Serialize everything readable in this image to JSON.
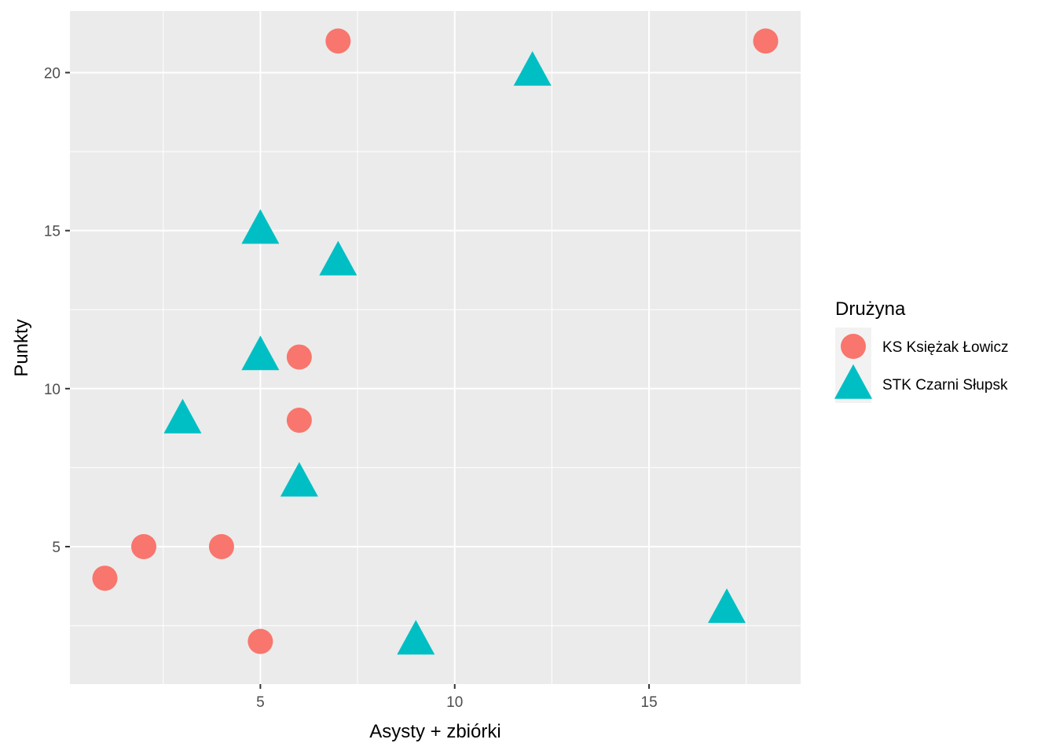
{
  "chart_data": {
    "type": "scatter",
    "xlabel": "Asysty + zbiórki",
    "ylabel": "Punkty",
    "xlim": [
      0.1,
      18.9
    ],
    "ylim": [
      0.65,
      21.95
    ],
    "x_ticks": [
      5,
      10,
      15
    ],
    "y_ticks": [
      5,
      10,
      15,
      20
    ],
    "x_tick_labels": [
      "5",
      "10",
      "15"
    ],
    "y_tick_labels": [
      "5",
      "10",
      "15",
      "20"
    ],
    "grid": true,
    "legend_title": "Drużyna",
    "legend_position": "right",
    "series": [
      {
        "name": "KS Księżak Łowicz",
        "shape": "circle",
        "color": "#F8766D",
        "points": [
          {
            "x": 7,
            "y": 21
          },
          {
            "x": 18,
            "y": 21
          },
          {
            "x": 6,
            "y": 11
          },
          {
            "x": 6,
            "y": 9
          },
          {
            "x": 2,
            "y": 5
          },
          {
            "x": 4,
            "y": 5
          },
          {
            "x": 1,
            "y": 4
          },
          {
            "x": 5,
            "y": 2
          }
        ]
      },
      {
        "name": "STK Czarni Słupsk",
        "shape": "triangle",
        "color": "#00BFC4",
        "points": [
          {
            "x": 12,
            "y": 20
          },
          {
            "x": 5,
            "y": 15
          },
          {
            "x": 7,
            "y": 14
          },
          {
            "x": 5,
            "y": 11
          },
          {
            "x": 3,
            "y": 9
          },
          {
            "x": 6,
            "y": 7
          },
          {
            "x": 17,
            "y": 3
          },
          {
            "x": 9,
            "y": 2
          }
        ]
      }
    ]
  }
}
